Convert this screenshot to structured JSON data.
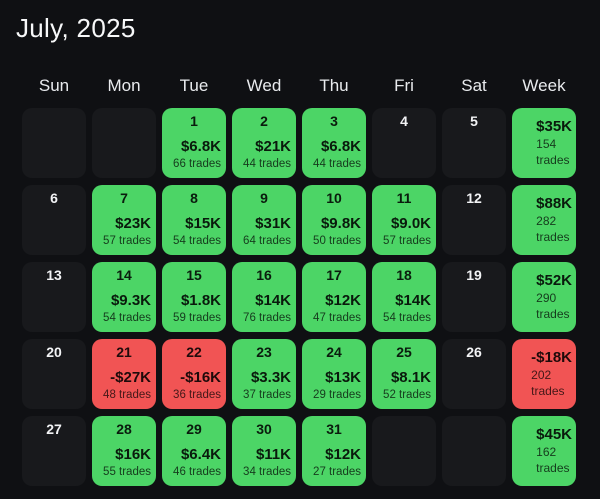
{
  "title": "July, 2025",
  "day_headers": [
    "Sun",
    "Mon",
    "Tue",
    "Wed",
    "Thu",
    "Fri",
    "Sat",
    "Week"
  ],
  "colors": {
    "gain": "#4cd566",
    "loss": "#f15454",
    "empty_cell": "#18191c",
    "background": "#0f1013"
  },
  "weeks": [
    {
      "days": [
        {
          "state": "blank"
        },
        {
          "state": "blank"
        },
        {
          "state": "gain",
          "day": "1",
          "pnl": "$6.8K",
          "trades": "66 trades"
        },
        {
          "state": "gain",
          "day": "2",
          "pnl": "$21K",
          "trades": "44 trades"
        },
        {
          "state": "gain",
          "day": "3",
          "pnl": "$6.8K",
          "trades": "44 trades"
        },
        {
          "state": "empty",
          "day": "4"
        },
        {
          "state": "empty",
          "day": "5"
        }
      ],
      "total": {
        "state": "gain",
        "pnl": "$35K",
        "count": "154",
        "word": "trades"
      }
    },
    {
      "days": [
        {
          "state": "empty",
          "day": "6"
        },
        {
          "state": "gain",
          "day": "7",
          "pnl": "$23K",
          "trades": "57 trades"
        },
        {
          "state": "gain",
          "day": "8",
          "pnl": "$15K",
          "trades": "54 trades"
        },
        {
          "state": "gain",
          "day": "9",
          "pnl": "$31K",
          "trades": "64 trades"
        },
        {
          "state": "gain",
          "day": "10",
          "pnl": "$9.8K",
          "trades": "50 trades"
        },
        {
          "state": "gain",
          "day": "11",
          "pnl": "$9.0K",
          "trades": "57 trades"
        },
        {
          "state": "empty",
          "day": "12"
        }
      ],
      "total": {
        "state": "gain",
        "pnl": "$88K",
        "count": "282",
        "word": "trades"
      }
    },
    {
      "days": [
        {
          "state": "empty",
          "day": "13"
        },
        {
          "state": "gain",
          "day": "14",
          "pnl": "$9.3K",
          "trades": "54 trades"
        },
        {
          "state": "gain",
          "day": "15",
          "pnl": "$1.8K",
          "trades": "59 trades"
        },
        {
          "state": "gain",
          "day": "16",
          "pnl": "$14K",
          "trades": "76 trades"
        },
        {
          "state": "gain",
          "day": "17",
          "pnl": "$12K",
          "trades": "47 trades"
        },
        {
          "state": "gain",
          "day": "18",
          "pnl": "$14K",
          "trades": "54 trades"
        },
        {
          "state": "empty",
          "day": "19"
        }
      ],
      "total": {
        "state": "gain",
        "pnl": "$52K",
        "count": "290",
        "word": "trades"
      }
    },
    {
      "days": [
        {
          "state": "empty",
          "day": "20"
        },
        {
          "state": "loss",
          "day": "21",
          "pnl": "-$27K",
          "trades": "48 trades"
        },
        {
          "state": "loss",
          "day": "22",
          "pnl": "-$16K",
          "trades": "36 trades"
        },
        {
          "state": "gain",
          "day": "23",
          "pnl": "$3.3K",
          "trades": "37 trades"
        },
        {
          "state": "gain",
          "day": "24",
          "pnl": "$13K",
          "trades": "29 trades"
        },
        {
          "state": "gain",
          "day": "25",
          "pnl": "$8.1K",
          "trades": "52 trades"
        },
        {
          "state": "empty",
          "day": "26"
        }
      ],
      "total": {
        "state": "loss",
        "pnl": "-$18K",
        "count": "202",
        "word": "trades"
      }
    },
    {
      "days": [
        {
          "state": "empty",
          "day": "27"
        },
        {
          "state": "gain",
          "day": "28",
          "pnl": "$16K",
          "trades": "55 trades"
        },
        {
          "state": "gain",
          "day": "29",
          "pnl": "$6.4K",
          "trades": "46 trades"
        },
        {
          "state": "gain",
          "day": "30",
          "pnl": "$11K",
          "trades": "34 trades"
        },
        {
          "state": "gain",
          "day": "31",
          "pnl": "$12K",
          "trades": "27 trades"
        },
        {
          "state": "blank"
        },
        {
          "state": "blank"
        }
      ],
      "total": {
        "state": "gain",
        "pnl": "$45K",
        "count": "162",
        "word": "trades"
      }
    }
  ]
}
